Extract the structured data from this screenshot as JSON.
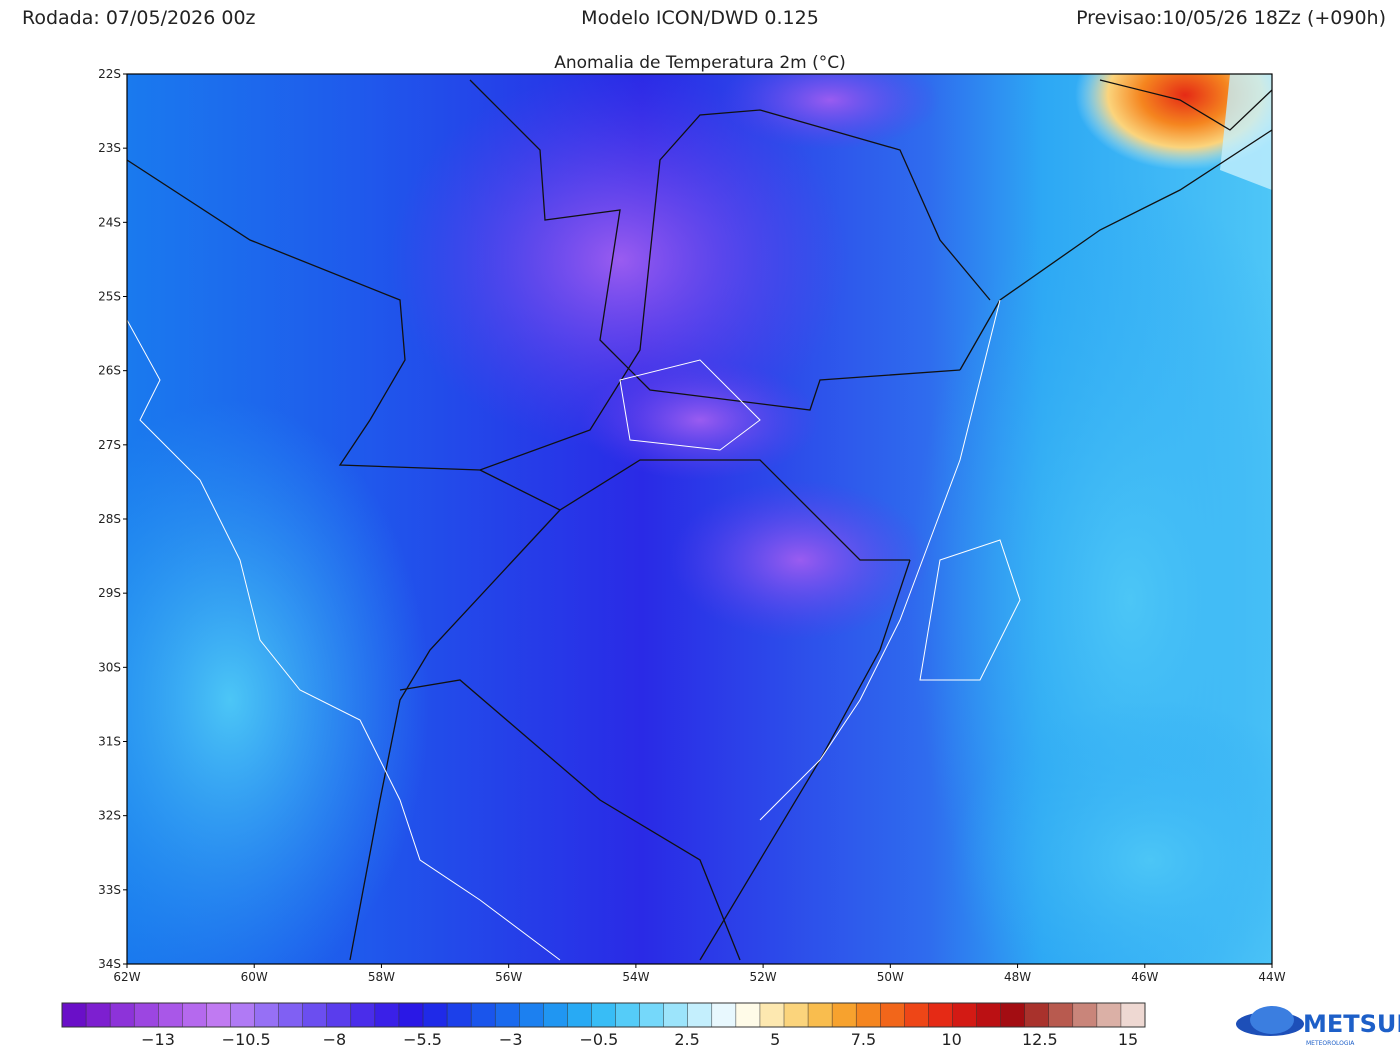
{
  "header": {
    "left": "Rodada: 07/05/2026 00z",
    "center": "Modelo ICON/DWD 0.125",
    "right": "Previsao:10/05/26 18Zz (+090h)"
  },
  "map": {
    "title": "Anomalia de Temperatura 2m (°C)",
    "lat_labels": [
      "22S",
      "23S",
      "24S",
      "25S",
      "26S",
      "27S",
      "28S",
      "29S",
      "30S",
      "31S",
      "32S",
      "33S",
      "34S"
    ],
    "lon_labels": [
      "62W",
      "60W",
      "58W",
      "56W",
      "54W",
      "52W",
      "50W",
      "48W",
      "46W",
      "44W"
    ]
  },
  "colorbar": {
    "labels": [
      "−13",
      "−10.5",
      "−8",
      "−5.5",
      "−3",
      "−0.5",
      "2.5",
      "5",
      "7.5",
      "10",
      "12.5",
      "15"
    ],
    "colors": [
      "#6a0fc8",
      "#7d1fd0",
      "#8d33d9",
      "#9c46e1",
      "#a957e8",
      "#b569ee",
      "#c07af2",
      "#b07af5",
      "#9670f5",
      "#8060f3",
      "#6b4ef0",
      "#5a3ded",
      "#4a2dea",
      "#3a20e8",
      "#2a18e6",
      "#1f2ae8",
      "#1c40ea",
      "#1a55ec",
      "#1a6aee",
      "#1c80f0",
      "#2096f2",
      "#28aaf4",
      "#38bdf6",
      "#55ccf8",
      "#75d8fa",
      "#9ce4fb",
      "#c4effd",
      "#e8f8fe",
      "#fffbe8",
      "#fde8b0",
      "#fbd47c",
      "#f9bd4e",
      "#f7a22e",
      "#f5851f",
      "#f2661a",
      "#ee4617",
      "#e52a15",
      "#d31a14",
      "#bb1013",
      "#a30d12",
      "#a9322c",
      "#b85a4f",
      "#c9857a",
      "#dbb0a6",
      "#eed8d2"
    ]
  },
  "logo": {
    "name": "METSUL",
    "tagline": "METEOROLOGIA"
  }
}
